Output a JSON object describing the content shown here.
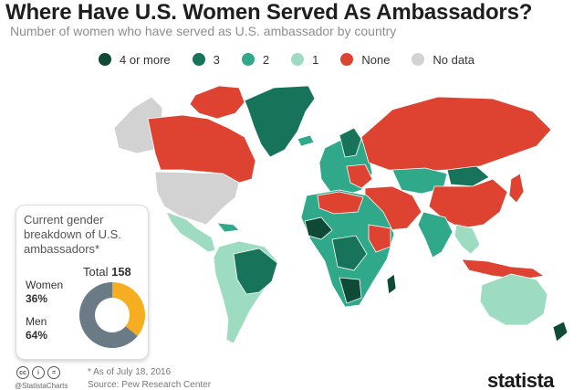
{
  "header": {
    "title": "Where Have U.S. Women Served As Ambassadors?",
    "subtitle": "Number of women who have served as U.S. ambassador by country"
  },
  "legend": [
    {
      "label": "4 or more",
      "color": "#0f4a36"
    },
    {
      "label": "3",
      "color": "#17745a"
    },
    {
      "label": "2",
      "color": "#2fa98a"
    },
    {
      "label": "1",
      "color": "#9edcc2"
    },
    {
      "label": "None",
      "color": "#de4331"
    },
    {
      "label": "No data",
      "color": "#d2d2d2"
    }
  ],
  "map_colors": {
    "ocean": "#ffffff",
    "four_plus": "#0f4a36",
    "three": "#17745a",
    "two": "#2fa98a",
    "one": "#9edcc2",
    "none": "#de4331",
    "no_data": "#d2d2d2"
  },
  "panel": {
    "title": "Current gender breakdown of U.S. ambassadors*",
    "total_label": "Total",
    "total_value": "158",
    "women_label": "Women",
    "women_pct": "36%",
    "men_label": "Men",
    "men_pct": "64%"
  },
  "chart_data": {
    "type": "pie",
    "title": "Current gender breakdown of U.S. ambassadors*",
    "total": 158,
    "slices": [
      {
        "label": "Women",
        "value": 36,
        "color": "#f5ae1f"
      },
      {
        "label": "Men",
        "value": 64,
        "color": "#6b7b86"
      }
    ]
  },
  "footer": {
    "icons": [
      "cc",
      "i",
      "="
    ],
    "handle": "@StatistaCharts",
    "note": "* As of July 18, 2016",
    "source": "Source: Pew Research Center",
    "brand": "statista"
  }
}
